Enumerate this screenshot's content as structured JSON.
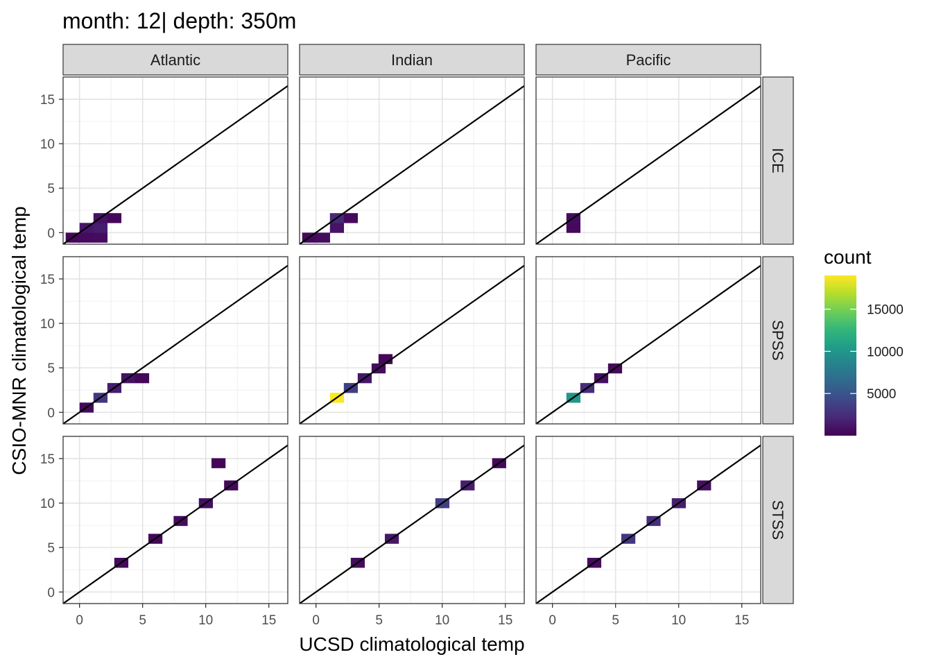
{
  "chart_data": {
    "type": "heatmap",
    "title": "month: 12| depth: 350m",
    "xlabel": "UCSD climatological temp",
    "ylabel": "CSIO-MNR climatological temp",
    "facet_columns": [
      "Atlantic",
      "Indian",
      "Pacific"
    ],
    "facet_rows": [
      "ICE",
      "SPSS",
      "STSS"
    ],
    "xlim": [
      -1.3,
      16.5
    ],
    "ylim": [
      -1.3,
      17.5
    ],
    "x_ticks": [
      0,
      5,
      10,
      15
    ],
    "y_ticks": [
      0,
      5,
      10,
      15
    ],
    "reference_line": {
      "slope": 1,
      "intercept": 0
    },
    "bin_width": 1.09,
    "legend": {
      "title": "count",
      "position": "right",
      "range": [
        0,
        19000
      ],
      "ticks": [
        5000,
        10000,
        15000
      ],
      "colormap": "viridis"
    },
    "cells": {
      "Atlantic": {
        "ICE": [
          [
            -0.55,
            -0.55,
            300
          ],
          [
            0.55,
            -0.55,
            500
          ],
          [
            1.65,
            -0.55,
            600
          ],
          [
            0.55,
            0.55,
            1200
          ],
          [
            1.65,
            0.55,
            1500
          ],
          [
            1.65,
            1.65,
            900
          ],
          [
            2.75,
            1.65,
            300
          ]
        ],
        "SPSS": [
          [
            0.55,
            0.55,
            400
          ],
          [
            1.65,
            1.65,
            3000
          ],
          [
            2.75,
            2.75,
            1500
          ],
          [
            3.85,
            3.85,
            900
          ],
          [
            4.95,
            3.85,
            300
          ]
        ],
        "STSS": [
          [
            3.3,
            3.3,
            500
          ],
          [
            6.0,
            6.0,
            300
          ],
          [
            8.0,
            8.0,
            600
          ],
          [
            10.0,
            10.0,
            700
          ],
          [
            12.0,
            12.0,
            400
          ],
          [
            11.0,
            14.5,
            200
          ]
        ]
      },
      "Indian": {
        "ICE": [
          [
            -0.55,
            -0.55,
            400
          ],
          [
            0.55,
            -0.55,
            600
          ],
          [
            1.65,
            0.55,
            1000
          ],
          [
            1.65,
            1.65,
            2200
          ],
          [
            2.75,
            1.65,
            500
          ]
        ],
        "SPSS": [
          [
            1.65,
            1.65,
            19000
          ],
          [
            2.75,
            2.75,
            3500
          ],
          [
            3.85,
            3.85,
            1200
          ],
          [
            4.95,
            4.95,
            600
          ],
          [
            5.5,
            6.0,
            300
          ]
        ],
        "STSS": [
          [
            3.3,
            3.3,
            600
          ],
          [
            6.0,
            6.0,
            1200
          ],
          [
            10.0,
            10.0,
            3500
          ],
          [
            12.0,
            12.0,
            1500
          ],
          [
            14.5,
            14.5,
            400
          ]
        ]
      },
      "Pacific": {
        "ICE": [
          [
            1.65,
            1.65,
            600
          ],
          [
            1.65,
            0.55,
            400
          ]
        ],
        "SPSS": [
          [
            1.65,
            1.65,
            10000
          ],
          [
            2.75,
            2.75,
            2500
          ],
          [
            3.85,
            3.85,
            800
          ],
          [
            4.95,
            4.95,
            400
          ]
        ],
        "STSS": [
          [
            3.3,
            3.3,
            600
          ],
          [
            6.0,
            6.0,
            3000
          ],
          [
            8.0,
            8.0,
            2500
          ],
          [
            10.0,
            10.0,
            1500
          ],
          [
            12.0,
            12.0,
            700
          ]
        ]
      }
    }
  }
}
